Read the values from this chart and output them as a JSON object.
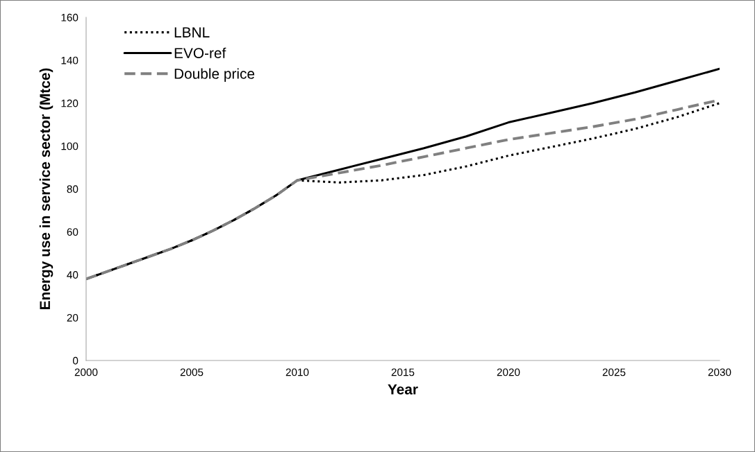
{
  "chart_data": {
    "type": "line",
    "xlabel": "Year",
    "ylabel": "Energy use in service sector (Mtce)",
    "x": [
      2000,
      2001,
      2002,
      2003,
      2004,
      2005,
      2006,
      2007,
      2008,
      2009,
      2010,
      2012,
      2014,
      2016,
      2018,
      2020,
      2022,
      2024,
      2026,
      2028,
      2030
    ],
    "series": [
      {
        "name": "LBNL",
        "color": "#000000",
        "line_style": "dotted",
        "values": [
          38,
          41.5,
          45,
          48.5,
          52,
          56,
          60.5,
          65.5,
          71,
          77,
          84,
          83,
          84,
          86.5,
          90.5,
          95.5,
          99.5,
          103.5,
          108,
          113.5,
          120
        ]
      },
      {
        "name": "EVO-ref",
        "color": "#000000",
        "line_style": "solid",
        "values": [
          38,
          41.5,
          45,
          48.5,
          52,
          56,
          60.5,
          65.5,
          71,
          77,
          84,
          89,
          94,
          99,
          104.5,
          111,
          115.5,
          120,
          125,
          130.5,
          136
        ]
      },
      {
        "name": "Double price",
        "color": "#808080",
        "line_style": "dashed",
        "values": [
          38,
          41.5,
          45,
          48.5,
          52,
          56,
          60.5,
          65.5,
          71,
          77,
          84,
          87.5,
          91,
          95,
          99,
          103,
          106,
          109,
          112.5,
          117,
          121.5
        ]
      }
    ],
    "xlim": [
      2000,
      2030
    ],
    "xticks": [
      2000,
      2005,
      2010,
      2015,
      2020,
      2025,
      2030
    ],
    "ylim": [
      0,
      160
    ],
    "yticks": [
      0,
      20,
      40,
      60,
      80,
      100,
      120,
      140,
      160
    ],
    "grid": false,
    "legend": "top left",
    "marker": "none"
  }
}
